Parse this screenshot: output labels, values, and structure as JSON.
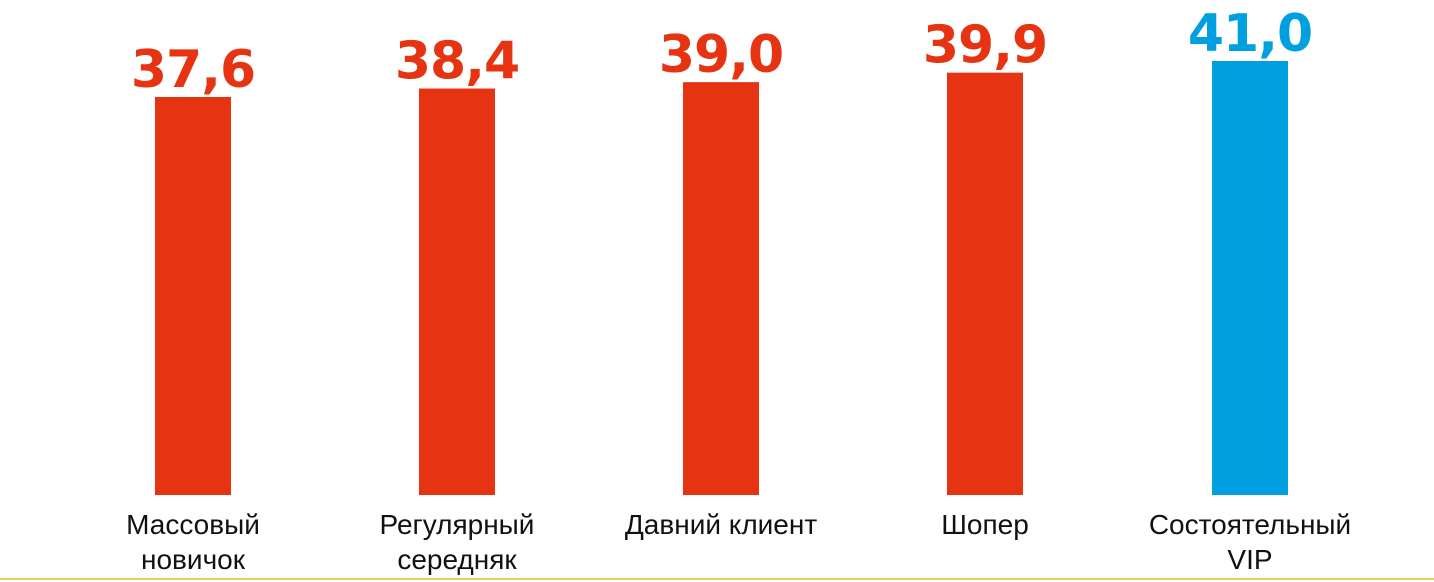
{
  "chart_data": {
    "type": "bar",
    "categories": [
      [
        "Массовый",
        "новичок"
      ],
      [
        "Регулярный",
        "середняк"
      ],
      [
        "Давний клиент"
      ],
      [
        "Шопер"
      ],
      [
        "Состоятельный",
        "VIP"
      ]
    ],
    "values": [
      37.6,
      38.4,
      39.0,
      39.9,
      41.0
    ],
    "value_labels": [
      "37,6",
      "38,4",
      "39,0",
      "39,9",
      "41,0"
    ],
    "highlight_index": 4,
    "ylim": [
      0,
      41.0
    ],
    "grid": false,
    "title": "",
    "xlabel": "",
    "ylabel": ""
  },
  "colors": {
    "bar": "#e63312",
    "highlight": "#009fdf",
    "bottom_rule": "#e8d060"
  }
}
